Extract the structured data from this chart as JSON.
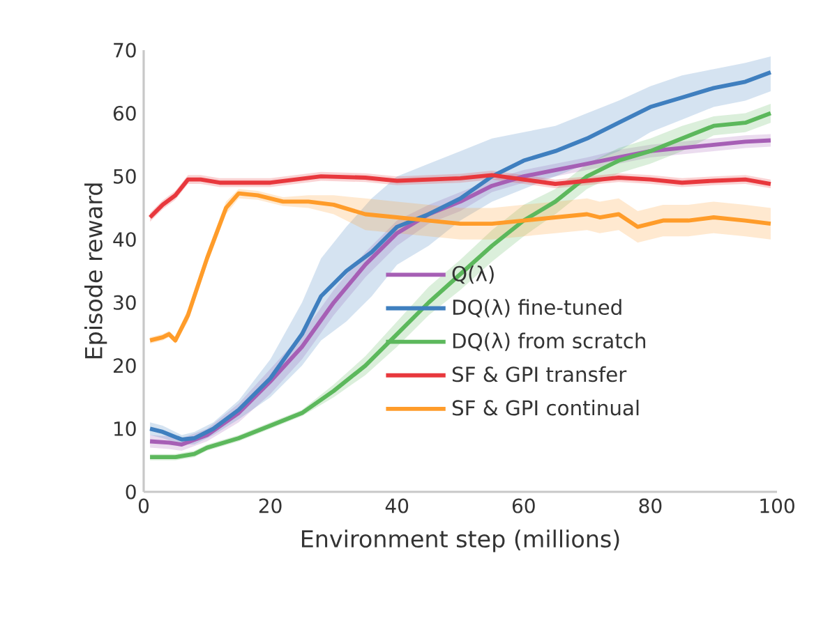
{
  "chart_data": {
    "type": "line",
    "xlabel": "Environment step (millions)",
    "ylabel": "Episode reward",
    "xlim": [
      0,
      100
    ],
    "ylim": [
      0,
      70
    ],
    "xticks": [
      0,
      20,
      40,
      60,
      80,
      100
    ],
    "yticks": [
      0,
      10,
      20,
      30,
      40,
      50,
      60,
      70
    ],
    "legend": "bottom right",
    "series": [
      {
        "name": "Q(λ)",
        "color": "#a65fb5",
        "x": [
          1,
          4,
          6,
          10,
          15,
          20,
          25,
          30,
          35,
          40,
          45,
          50,
          55,
          60,
          65,
          70,
          75,
          80,
          85,
          90,
          95,
          99
        ],
        "values": [
          8,
          7.8,
          7.5,
          9,
          12.5,
          17.5,
          23,
          30,
          36,
          41,
          44,
          46,
          48.5,
          50,
          51,
          52,
          53,
          54,
          54.5,
          55,
          55.5,
          55.7
        ],
        "lower": [
          7,
          6.8,
          6.5,
          8,
          11,
          15.5,
          21,
          28,
          34,
          39,
          42.5,
          44.5,
          47.5,
          49,
          50,
          51,
          52,
          53,
          53.5,
          54,
          54.5,
          54.7
        ],
        "upper": [
          9,
          8.8,
          8.5,
          10,
          14,
          19.5,
          25,
          32,
          38,
          43,
          45.5,
          47.5,
          49.5,
          51,
          52,
          53,
          54.2,
          55,
          55.5,
          56,
          56.5,
          56.7
        ]
      },
      {
        "name": "DQ(λ) fine-tuned",
        "color": "#3f7fbf",
        "x": [
          1,
          3,
          6,
          8,
          11,
          15,
          20,
          25,
          28,
          32,
          36,
          40,
          45,
          50,
          55,
          60,
          65,
          70,
          75,
          80,
          85,
          90,
          95,
          99
        ],
        "values": [
          10,
          9.5,
          8.3,
          8.5,
          10,
          13,
          18,
          25,
          31,
          35,
          38,
          42,
          44,
          46.5,
          50,
          52.5,
          54,
          56,
          58.5,
          61,
          62.5,
          64,
          65,
          66.5
        ],
        "lower": [
          9,
          8.5,
          7.5,
          7.5,
          9,
          11.5,
          15,
          20,
          24,
          27,
          31,
          36,
          39,
          43,
          46,
          48,
          50,
          52,
          54,
          57,
          59,
          61,
          62,
          63.5
        ],
        "upper": [
          11,
          10.5,
          9,
          9.5,
          11,
          14.5,
          21,
          30,
          37,
          42,
          46.5,
          50,
          52,
          54,
          56,
          57,
          58,
          60,
          62,
          64.3,
          66,
          67,
          68,
          69
        ]
      },
      {
        "name": "DQ(λ) from scratch",
        "color": "#5cb85c",
        "x": [
          1,
          5,
          8,
          10,
          15,
          20,
          25,
          30,
          35,
          40,
          45,
          50,
          55,
          60,
          65,
          70,
          75,
          80,
          85,
          90,
          95,
          99
        ],
        "values": [
          5.5,
          5.5,
          6,
          7,
          8.5,
          10.5,
          12.5,
          16,
          20,
          25,
          30,
          34.5,
          39,
          43,
          46,
          50,
          52.5,
          54,
          56,
          58,
          58.5,
          60
        ],
        "lower": [
          5,
          5,
          5.5,
          6.5,
          8,
          10,
          12,
          15,
          18.5,
          23,
          28,
          32,
          36.5,
          40.5,
          44,
          48,
          50.5,
          52,
          54,
          56.5,
          57,
          58.5
        ],
        "upper": [
          6,
          6,
          6.5,
          7.5,
          9,
          11,
          13,
          17,
          21.5,
          27,
          32.5,
          36.8,
          41.5,
          45.5,
          48,
          52,
          54.5,
          56,
          58,
          59.5,
          60,
          61.5
        ]
      },
      {
        "name": "SF & GPI transfer",
        "color": "#e8383d",
        "x": [
          1,
          3,
          5,
          7,
          9,
          12,
          20,
          28,
          35,
          40,
          50,
          55,
          60,
          65,
          70,
          75,
          80,
          85,
          90,
          95,
          99
        ],
        "values": [
          43.5,
          45.5,
          47,
          49.5,
          49.5,
          49,
          49,
          50,
          49.8,
          49.3,
          49.7,
          50.2,
          49.5,
          48.8,
          49.3,
          49.8,
          49.5,
          49,
          49.3,
          49.5,
          48.8
        ],
        "lower": [
          42.8,
          44.8,
          46.3,
          48.8,
          48.8,
          48.3,
          48.3,
          49.3,
          49.1,
          48.6,
          49,
          49.5,
          48.8,
          48.1,
          48.6,
          49.1,
          48.8,
          48.3,
          48.6,
          48.8,
          48.1
        ],
        "upper": [
          44.2,
          46.2,
          47.7,
          50.2,
          50.2,
          49.7,
          49.7,
          50.7,
          50.5,
          50,
          50.4,
          50.9,
          50.2,
          49.5,
          50,
          50.5,
          50.2,
          49.7,
          50,
          50.2,
          49.5
        ]
      },
      {
        "name": "SF & GPI continual",
        "color": "#ff9c2a",
        "x": [
          1,
          3,
          4,
          5,
          7,
          10,
          13,
          15,
          18,
          22,
          26,
          30,
          35,
          40,
          45,
          50,
          55,
          60,
          65,
          70,
          72,
          75,
          78,
          82,
          86,
          90,
          95,
          99
        ],
        "values": [
          24,
          24.5,
          25,
          24,
          28,
          37,
          45,
          47.3,
          47,
          46,
          46,
          45.5,
          44,
          43.5,
          43,
          42.5,
          42.5,
          43,
          43.5,
          44,
          43.5,
          44,
          42,
          43,
          43,
          43.5,
          43,
          42.5
        ],
        "lower": [
          23.5,
          24,
          24.5,
          23.5,
          27,
          36,
          44,
          46.5,
          46.3,
          45.3,
          45,
          44,
          41.5,
          41,
          40.5,
          40,
          40,
          40.5,
          41,
          41.5,
          41,
          41.5,
          39.5,
          40.5,
          40.5,
          41,
          40.5,
          40
        ],
        "upper": [
          24.5,
          25,
          25.5,
          24.5,
          29,
          38,
          46,
          48,
          47.7,
          46.7,
          47,
          47,
          46.5,
          46,
          45.5,
          45,
          45,
          45.5,
          46,
          46.5,
          46,
          46.5,
          44.5,
          45.5,
          45.5,
          46,
          45.5,
          45
        ]
      }
    ]
  }
}
